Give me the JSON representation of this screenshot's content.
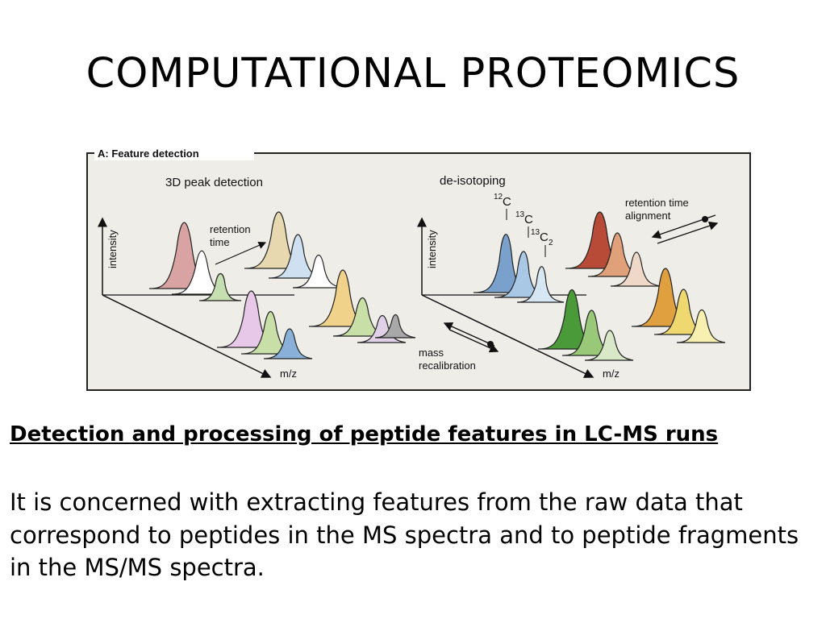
{
  "slide": {
    "title": "COMPUTATIONAL PROTEOMICS",
    "heading": "Detection and processing of peptide features in LC-MS runs",
    "body": "It is concerned with extracting features from the raw data that correspond to peptides in the MS spectra and to peptide fragments in the MS/MS spectra."
  },
  "figure": {
    "panel_title": "A: Feature detection",
    "left": {
      "title": "3D peak detection",
      "y_axis": "intensity",
      "x_axis": "m/z",
      "z_axis_line1": "retention",
      "z_axis_line2": "time"
    },
    "right": {
      "title": "de-isotoping",
      "y_axis": "intensity",
      "x_axis": "m/z",
      "iso1_sup": "12",
      "iso1": "C",
      "iso2_sup": "13",
      "iso2": "C",
      "iso3_sup": "13",
      "iso3": "C",
      "iso3_sub": "2",
      "rt_line1": "retention time",
      "rt_line2": "alignment",
      "mass_line1": "mass",
      "mass_line2": "recalibration"
    },
    "peak_colors": {
      "left": [
        "#d9a3a3",
        "#ffffff",
        "#c6dfb0",
        "#e8d8b0",
        "#cfe0f0",
        "#ffffff",
        "#f0d28a",
        "#e8c8e8",
        "#c8e0a8",
        "#88b0d8",
        "#e0d0e8",
        "#a8a8a8"
      ],
      "right": [
        "#7aa0cc",
        "#a8c8e6",
        "#d6e6f2",
        "#b84a38",
        "#e0a07a",
        "#f0d8c8",
        "#e0a040",
        "#f0d870",
        "#f8f0b0",
        "#4a9a3a",
        "#98c878",
        "#d8e8c8"
      ]
    }
  }
}
